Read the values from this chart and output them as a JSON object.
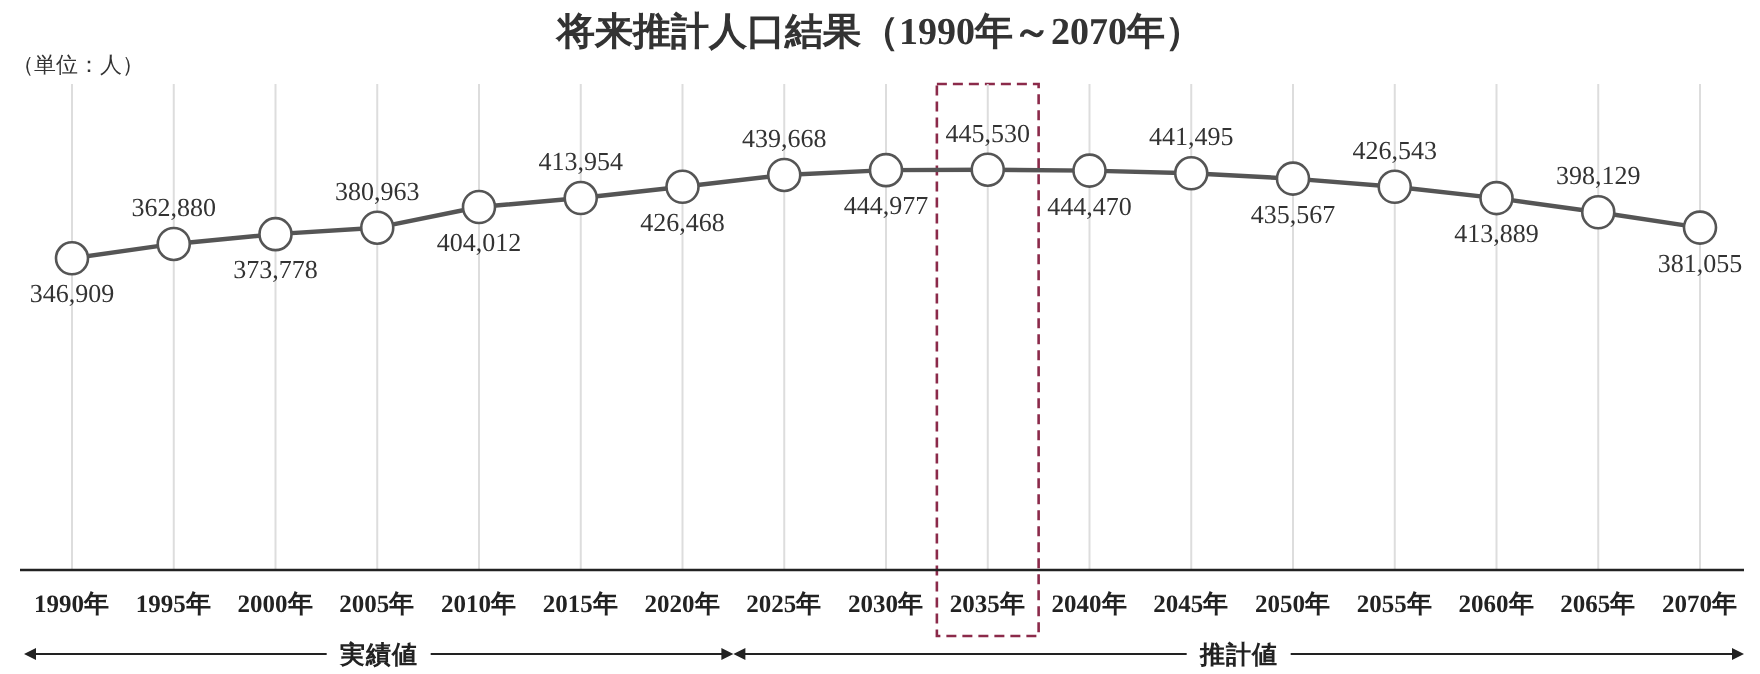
{
  "chart_data": {
    "type": "line",
    "title": "将来推計人口結果（1990年～2070年）",
    "annotations": [
      "（単位：人）",
      "実績値",
      "推計値"
    ],
    "categories": [
      "1990年",
      "1995年",
      "2000年",
      "2005年",
      "2010年",
      "2015年",
      "2020年",
      "2025年",
      "2030年",
      "2035年",
      "2040年",
      "2045年",
      "2050年",
      "2055年",
      "2060年",
      "2065年",
      "2070年"
    ],
    "series": [
      {
        "color": "#555555",
        "values": [
          346909,
          362880,
          373778,
          380963,
          404012,
          413954,
          426468,
          439668,
          444977,
          445530,
          444470,
          441495,
          435567,
          426543,
          413889,
          398129,
          381055
        ],
        "value_labels": [
          "346,909",
          "362,880",
          "373,778",
          "380,963",
          "404,012",
          "413,954",
          "426,468",
          "439,668",
          "444,977",
          "445,530",
          "444,470",
          "441,495",
          "435,567",
          "426,543",
          "413,889",
          "398,129",
          "381,055"
        ]
      }
    ],
    "tick_labels": "x",
    "grid": "x",
    "marker": "circle"
  }
}
